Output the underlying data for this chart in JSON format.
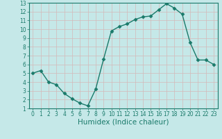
{
  "x": [
    0,
    1,
    2,
    3,
    4,
    5,
    6,
    7,
    8,
    9,
    10,
    11,
    12,
    13,
    14,
    15,
    16,
    17,
    18,
    19,
    20,
    21,
    22,
    23
  ],
  "y": [
    5.0,
    5.3,
    4.0,
    3.7,
    2.7,
    2.1,
    1.6,
    1.3,
    3.2,
    6.6,
    9.8,
    10.3,
    10.6,
    11.1,
    11.4,
    11.5,
    12.2,
    12.9,
    12.4,
    11.7,
    8.5,
    6.5,
    6.5,
    6.0
  ],
  "line_color": "#1a7a6a",
  "marker": "D",
  "marker_size": 2.5,
  "bg_color": "#c5e8e8",
  "grid_color": "#d4b8b8",
  "xlabel": "Humidex (Indice chaleur)",
  "ylim": [
    1,
    13
  ],
  "xlim_min": -0.5,
  "xlim_max": 23.5,
  "yticks": [
    1,
    2,
    3,
    4,
    5,
    6,
    7,
    8,
    9,
    10,
    11,
    12,
    13
  ],
  "xticks": [
    0,
    1,
    2,
    3,
    4,
    5,
    6,
    7,
    8,
    9,
    10,
    11,
    12,
    13,
    14,
    15,
    16,
    17,
    18,
    19,
    20,
    21,
    22,
    23
  ],
  "tick_label_fontsize": 5.5,
  "xlabel_fontsize": 7.5,
  "linewidth": 1.0
}
